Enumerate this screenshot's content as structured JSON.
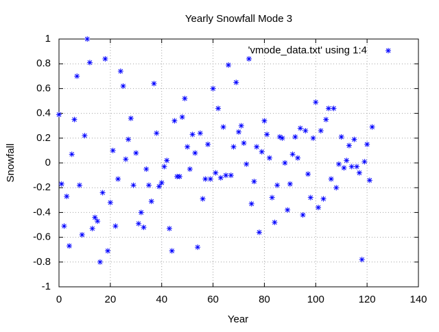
{
  "chart_data": {
    "type": "scatter",
    "title": "Yearly Snowfall Mode 3",
    "xlabel": "Year",
    "ylabel": "Snowfall",
    "x": [
      0,
      1,
      2,
      3,
      4,
      5,
      6,
      7,
      8,
      9,
      10,
      11,
      12,
      13,
      14,
      15,
      16,
      17,
      18,
      19,
      20,
      21,
      22,
      23,
      24,
      25,
      26,
      27,
      28,
      29,
      30,
      31,
      32,
      33,
      34,
      35,
      36,
      37,
      38,
      39,
      40,
      41,
      42,
      43,
      44,
      45,
      46,
      47,
      48,
      49,
      50,
      51,
      52,
      53,
      54,
      55,
      56,
      57,
      58,
      59,
      60,
      61,
      62,
      63,
      64,
      65,
      66,
      67,
      68,
      69,
      70,
      71,
      72,
      73,
      74,
      75,
      76,
      77,
      78,
      79,
      80,
      81,
      82,
      83,
      84,
      85,
      86,
      87,
      88,
      89,
      90,
      91,
      92,
      93,
      94,
      95,
      96,
      97,
      98,
      99,
      100,
      101,
      102,
      103,
      104,
      105,
      106,
      107,
      108,
      109,
      110,
      111,
      112,
      113,
      114,
      115,
      116,
      117,
      118,
      119,
      120,
      121,
      122
    ],
    "series": [
      {
        "name": "'vmode_data.txt' using 1:4",
        "color": "#0000ff",
        "values": [
          0.39,
          -0.17,
          -0.51,
          -0.27,
          -0.67,
          0.07,
          0.35,
          0.7,
          -0.18,
          -0.58,
          0.22,
          1.0,
          0.81,
          -0.53,
          -0.44,
          -0.47,
          -0.8,
          -0.24,
          0.84,
          -0.71,
          -0.32,
          0.1,
          -0.51,
          -0.13,
          0.74,
          0.62,
          0.03,
          0.19,
          0.36,
          -0.18,
          0.08,
          -0.49,
          -0.4,
          -0.52,
          -0.05,
          -0.18,
          -0.31,
          0.64,
          0.24,
          -0.19,
          -0.16,
          -0.03,
          0.02,
          -0.53,
          -0.71,
          0.34,
          -0.11,
          -0.11,
          0.37,
          0.52,
          0.13,
          -0.05,
          0.23,
          0.08,
          -0.68,
          0.24,
          -0.29,
          -0.13,
          0.15,
          -0.13,
          0.6,
          -0.08,
          0.44,
          -0.12,
          0.29,
          -0.1,
          0.79,
          -0.1,
          0.13,
          0.65,
          0.25,
          0.3,
          0.16,
          -0.01,
          0.84,
          -0.33,
          -0.15,
          0.13,
          -0.56,
          0.09,
          0.34,
          0.23,
          0.04,
          -0.28,
          -0.48,
          -0.18,
          0.21,
          0.2,
          0.0,
          -0.38,
          -0.17,
          0.07,
          0.21,
          0.04,
          0.28,
          -0.42,
          0.26,
          -0.09,
          -0.28,
          0.2,
          0.49,
          -0.36,
          0.26,
          -0.29,
          0.35,
          0.44,
          -0.13,
          0.44,
          -0.2,
          -0.01,
          0.21,
          -0.04,
          0.02,
          0.14,
          -0.03,
          0.19,
          -0.03,
          -0.08,
          -0.78,
          0.01,
          0.15,
          -0.14,
          0.29
        ]
      }
    ],
    "xlim": [
      0,
      140
    ],
    "xticks": [
      0,
      20,
      40,
      60,
      80,
      100,
      120,
      140
    ],
    "ylim": [
      -1,
      1
    ],
    "yticks": [
      -1,
      -0.8,
      -0.6,
      -0.4,
      -0.2,
      0,
      0.2,
      0.4,
      0.6,
      0.8,
      1
    ],
    "grid": true,
    "legend": "top-right"
  }
}
